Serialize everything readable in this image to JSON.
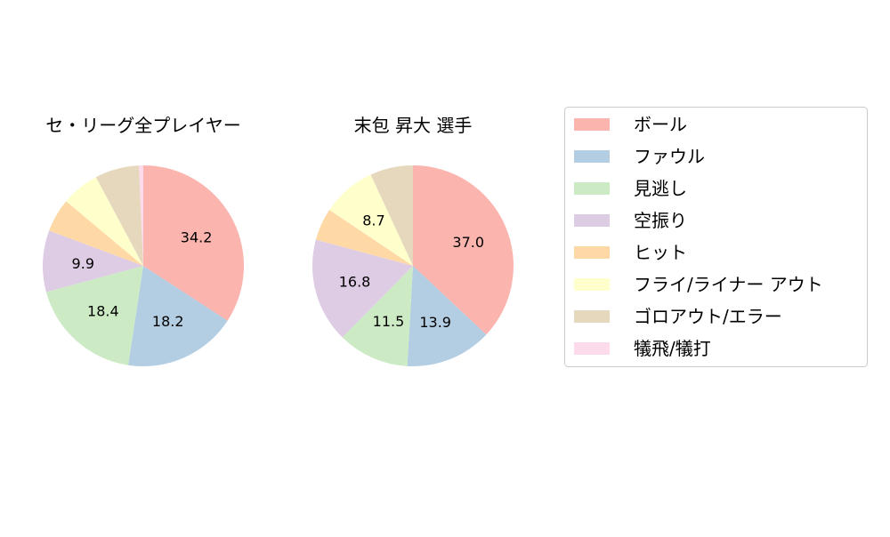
{
  "chart_data": [
    {
      "type": "pie",
      "title": "セ・リーグ全プレイヤー",
      "categories": [
        "ボール",
        "ファウル",
        "見逃し",
        "空振り",
        "ヒット",
        "フライ/ライナー アウト",
        "ゴロアウト/エラー",
        "犠飛/犠打"
      ],
      "values": [
        34.2,
        18.2,
        18.4,
        9.9,
        5.4,
        6.1,
        7.1,
        0.7
      ],
      "labels": [
        "34.2",
        "18.2",
        "18.4",
        "9.9",
        "",
        "",
        "",
        ""
      ],
      "start_angle": 90,
      "direction": "clockwise"
    },
    {
      "type": "pie",
      "title": "末包 昇大  選手",
      "categories": [
        "ボール",
        "ファウル",
        "見逃し",
        "空振り",
        "ヒット",
        "フライ/ライナー アウト",
        "ゴロアウト/エラー",
        "犠飛/犠打"
      ],
      "values": [
        37.0,
        13.9,
        11.5,
        16.8,
        5.2,
        8.7,
        6.9,
        0.0
      ],
      "labels": [
        "37.0",
        "13.9",
        "11.5",
        "16.8",
        "",
        "8.7",
        "",
        ""
      ],
      "start_angle": 90,
      "direction": "clockwise"
    }
  ],
  "legend": {
    "placement": "right",
    "entries": [
      "ボール",
      "ファウル",
      "見逃し",
      "空振り",
      "ヒット",
      "フライ/ライナー アウト",
      "ゴロアウト/エラー",
      "犠飛/犠打"
    ]
  },
  "colors": [
    "#fbb4ae",
    "#b3cde3",
    "#ccebc5",
    "#decbe4",
    "#fed9a6",
    "#ffffcc",
    "#e5d8bd",
    "#fddaec"
  ]
}
